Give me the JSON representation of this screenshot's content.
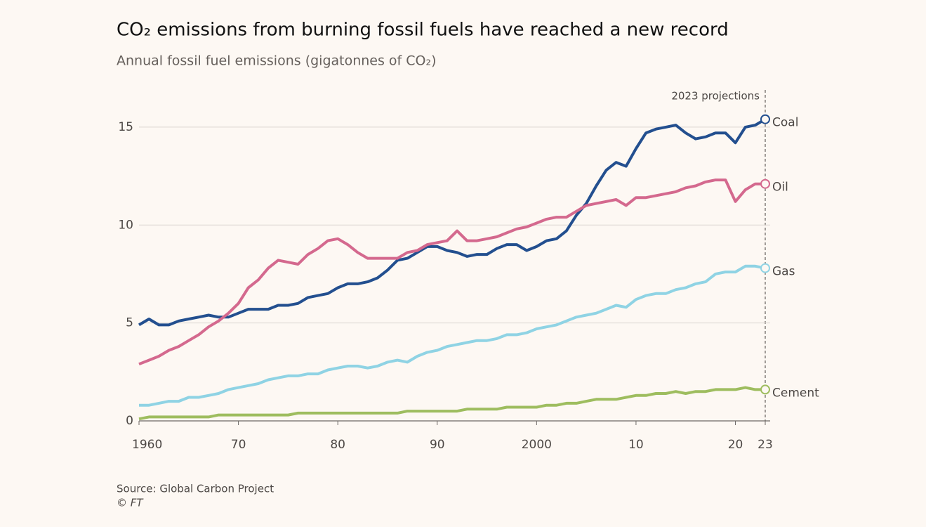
{
  "chart_data": {
    "type": "line",
    "title": "CO₂ emissions from burning fossil fuels have reached a new record",
    "subtitle": "Annual fossil fuel emissions (gigatonnes of CO₂)",
    "annotation": "2023 projections",
    "source": "Source: Global Carbon Project",
    "credit": "© FT",
    "x": [
      1960,
      1961,
      1962,
      1963,
      1964,
      1965,
      1966,
      1967,
      1968,
      1969,
      1970,
      1971,
      1972,
      1973,
      1974,
      1975,
      1976,
      1977,
      1978,
      1979,
      1980,
      1981,
      1982,
      1983,
      1984,
      1985,
      1986,
      1987,
      1988,
      1989,
      1990,
      1991,
      1992,
      1993,
      1994,
      1995,
      1996,
      1997,
      1998,
      1999,
      2000,
      2001,
      2002,
      2003,
      2004,
      2005,
      2006,
      2007,
      2008,
      2009,
      2010,
      2011,
      2012,
      2013,
      2014,
      2015,
      2016,
      2017,
      2018,
      2019,
      2020,
      2021,
      2022,
      2023
    ],
    "series": [
      {
        "name": "Coal",
        "color": "#234f8f",
        "values": [
          4.9,
          5.2,
          4.9,
          4.9,
          5.1,
          5.2,
          5.3,
          5.4,
          5.3,
          5.3,
          5.5,
          5.7,
          5.7,
          5.7,
          5.9,
          5.9,
          6.0,
          6.3,
          6.4,
          6.5,
          6.8,
          7.0,
          7.0,
          7.1,
          7.3,
          7.7,
          8.2,
          8.3,
          8.6,
          8.9,
          8.9,
          8.7,
          8.6,
          8.4,
          8.5,
          8.5,
          8.8,
          9.0,
          9.0,
          8.7,
          8.9,
          9.2,
          9.3,
          9.7,
          10.5,
          11.1,
          12.0,
          12.8,
          13.2,
          13.0,
          13.9,
          14.7,
          14.9,
          15.0,
          15.1,
          14.7,
          14.4,
          14.5,
          14.7,
          14.7,
          14.2,
          15.0,
          15.1,
          15.4
        ]
      },
      {
        "name": "Oil",
        "color": "#d4698e",
        "values": [
          2.9,
          3.1,
          3.3,
          3.6,
          3.8,
          4.1,
          4.4,
          4.8,
          5.1,
          5.5,
          6.0,
          6.8,
          7.2,
          7.8,
          8.2,
          8.1,
          8.0,
          8.5,
          8.8,
          9.2,
          9.3,
          9.0,
          8.6,
          8.3,
          8.3,
          8.3,
          8.3,
          8.6,
          8.7,
          9.0,
          9.1,
          9.2,
          9.7,
          9.2,
          9.2,
          9.3,
          9.4,
          9.6,
          9.8,
          9.9,
          10.1,
          10.3,
          10.4,
          10.4,
          10.7,
          11.0,
          11.1,
          11.2,
          11.3,
          11.0,
          11.4,
          11.4,
          11.5,
          11.6,
          11.7,
          11.9,
          12.0,
          12.2,
          12.3,
          12.3,
          11.2,
          11.8,
          12.1,
          12.1
        ]
      },
      {
        "name": "Gas",
        "color": "#8fd3e4",
        "values": [
          0.8,
          0.8,
          0.9,
          1.0,
          1.0,
          1.2,
          1.2,
          1.3,
          1.4,
          1.6,
          1.7,
          1.8,
          1.9,
          2.1,
          2.2,
          2.3,
          2.3,
          2.4,
          2.4,
          2.6,
          2.7,
          2.8,
          2.8,
          2.7,
          2.8,
          3.0,
          3.1,
          3.0,
          3.3,
          3.5,
          3.6,
          3.8,
          3.9,
          4.0,
          4.1,
          4.1,
          4.2,
          4.4,
          4.4,
          4.5,
          4.7,
          4.8,
          4.9,
          5.1,
          5.3,
          5.4,
          5.5,
          5.7,
          5.9,
          5.8,
          6.2,
          6.4,
          6.5,
          6.5,
          6.7,
          6.8,
          7.0,
          7.1,
          7.5,
          7.6,
          7.6,
          7.9,
          7.9,
          7.8
        ]
      },
      {
        "name": "Cement",
        "color": "#9ebd5f",
        "values": [
          0.1,
          0.2,
          0.2,
          0.2,
          0.2,
          0.2,
          0.2,
          0.2,
          0.3,
          0.3,
          0.3,
          0.3,
          0.3,
          0.3,
          0.3,
          0.3,
          0.4,
          0.4,
          0.4,
          0.4,
          0.4,
          0.4,
          0.4,
          0.4,
          0.4,
          0.4,
          0.4,
          0.5,
          0.5,
          0.5,
          0.5,
          0.5,
          0.5,
          0.6,
          0.6,
          0.6,
          0.6,
          0.7,
          0.7,
          0.7,
          0.7,
          0.8,
          0.8,
          0.9,
          0.9,
          1.0,
          1.1,
          1.1,
          1.1,
          1.2,
          1.3,
          1.3,
          1.4,
          1.4,
          1.5,
          1.4,
          1.5,
          1.5,
          1.6,
          1.6,
          1.6,
          1.7,
          1.6,
          1.6
        ]
      }
    ],
    "xlim": [
      1960,
      2023
    ],
    "xticks": [
      1960,
      {
        "value": 1970,
        "label": "70"
      },
      {
        "value": 1980,
        "label": "80"
      },
      {
        "value": 1990,
        "label": "90"
      },
      2000,
      {
        "value": 2010,
        "label": "10"
      },
      {
        "value": 2020,
        "label": "20"
      },
      {
        "value": 2023,
        "label": "23"
      }
    ],
    "ylim": [
      0,
      16
    ],
    "yticks": [
      0,
      5,
      10,
      15
    ],
    "grid": true
  }
}
